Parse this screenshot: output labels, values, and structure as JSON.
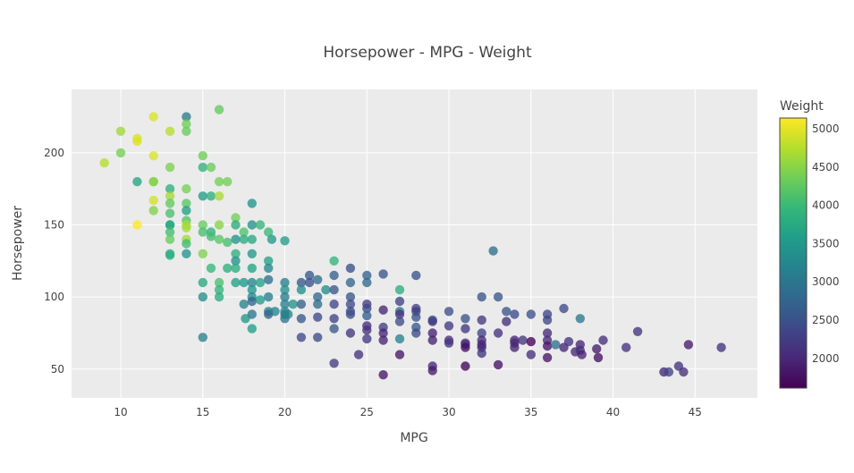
{
  "chart_data": {
    "type": "scatter",
    "title": "Horsepower - MPG - Weight",
    "xlabel": "MPG",
    "ylabel": "Horsepower",
    "xlim": [
      7,
      48.8
    ],
    "ylim": [
      30,
      244
    ],
    "x_ticks": [
      10,
      15,
      20,
      25,
      30,
      35,
      40,
      45
    ],
    "y_ticks": [
      50,
      100,
      150,
      200
    ],
    "grid": true,
    "colorbar": {
      "title": "Weight",
      "range": [
        1613,
        5140
      ],
      "ticks": [
        2000,
        2500,
        3000,
        3500,
        4000,
        4500,
        5000
      ],
      "colorscale": "Viridis"
    },
    "points": [
      [
        9,
        193,
        4732
      ],
      [
        10,
        215,
        4615
      ],
      [
        10,
        200,
        4376
      ],
      [
        11,
        210,
        4955
      ],
      [
        11,
        208,
        4952
      ],
      [
        11,
        180,
        3664
      ],
      [
        11,
        150,
        5140
      ],
      [
        12,
        225,
        4951
      ],
      [
        12,
        198,
        4952
      ],
      [
        12,
        180,
        4499
      ],
      [
        12,
        180,
        4464
      ],
      [
        12,
        167,
        4906
      ],
      [
        12,
        160,
        4462
      ],
      [
        13,
        215,
        4746
      ],
      [
        13,
        190,
        4422
      ],
      [
        13,
        175,
        3821
      ],
      [
        13,
        170,
        4654
      ],
      [
        13,
        165,
        4274
      ],
      [
        13,
        158,
        4100
      ],
      [
        13,
        150,
        3940
      ],
      [
        13,
        150,
        3700
      ],
      [
        13,
        145,
        4055
      ],
      [
        13,
        140,
        4294
      ],
      [
        13,
        130,
        3870
      ],
      [
        13,
        129,
        3821
      ],
      [
        14,
        225,
        3086
      ],
      [
        14,
        220,
        4354
      ],
      [
        14,
        215,
        4312
      ],
      [
        14,
        175,
        4385
      ],
      [
        14,
        165,
        4209
      ],
      [
        14,
        160,
        3609
      ],
      [
        14,
        153,
        4154
      ],
      [
        14,
        150,
        4699
      ],
      [
        14,
        148,
        4657
      ],
      [
        14,
        140,
        4638
      ],
      [
        14,
        137,
        4042
      ],
      [
        14,
        130,
        3420
      ],
      [
        15,
        198,
        4341
      ],
      [
        15,
        190,
        3850
      ],
      [
        15,
        170,
        3563
      ],
      [
        15,
        150,
        4300
      ],
      [
        15,
        145,
        4082
      ],
      [
        15,
        130,
        4440
      ],
      [
        15,
        110,
        3730
      ],
      [
        15,
        100,
        3329
      ],
      [
        15,
        72,
        3158
      ],
      [
        15.5,
        190,
        4325
      ],
      [
        15.5,
        170,
        3840
      ],
      [
        15.5,
        145,
        3892
      ],
      [
        15.5,
        142,
        4054
      ],
      [
        15.5,
        120,
        3962
      ],
      [
        16,
        230,
        4278
      ],
      [
        16,
        180,
        4380
      ],
      [
        16,
        170,
        4668
      ],
      [
        16,
        150,
        4498
      ],
      [
        16,
        140,
        4220
      ],
      [
        16,
        110,
        4100
      ],
      [
        16,
        105,
        3897
      ],
      [
        16,
        100,
        3781
      ],
      [
        16.5,
        180,
        4380
      ],
      [
        16.5,
        138,
        4080
      ],
      [
        16.5,
        120,
        3820
      ],
      [
        17,
        155,
        4360
      ],
      [
        17,
        150,
        3755
      ],
      [
        17,
        140,
        3449
      ],
      [
        17,
        130,
        3840
      ],
      [
        17,
        125,
        3410
      ],
      [
        17,
        110,
        3600
      ],
      [
        17,
        120,
        3800
      ],
      [
        17.5,
        145,
        4140
      ],
      [
        17.5,
        140,
        3785
      ],
      [
        17.5,
        110,
        3520
      ],
      [
        17.5,
        95,
        3193
      ],
      [
        17.6,
        85,
        3465
      ],
      [
        18,
        165,
        3445
      ],
      [
        18,
        150,
        3436
      ],
      [
        18,
        140,
        3735
      ],
      [
        18,
        130,
        3504
      ],
      [
        18,
        120,
        3660
      ],
      [
        18,
        110,
        3250
      ],
      [
        18,
        105,
        3459
      ],
      [
        18,
        100,
        3288
      ],
      [
        18,
        97,
        2774
      ],
      [
        18,
        88,
        3021
      ],
      [
        18,
        78,
        3574
      ],
      [
        18.5,
        150,
        3940
      ],
      [
        18.5,
        110,
        3645
      ],
      [
        18.5,
        98,
        3525
      ],
      [
        19,
        145,
        3988
      ],
      [
        19,
        125,
        3630
      ],
      [
        19,
        120,
        3270
      ],
      [
        19,
        112,
        2900
      ],
      [
        19,
        100,
        3102
      ],
      [
        19,
        90,
        3211
      ],
      [
        19,
        88,
        2722
      ],
      [
        19.2,
        140,
        3535
      ],
      [
        19.4,
        90,
        3210
      ],
      [
        20,
        139,
        3570
      ],
      [
        20,
        110,
        3102
      ],
      [
        20,
        105,
        3365
      ],
      [
        20,
        100,
        3085
      ],
      [
        20,
        95,
        3155
      ],
      [
        20,
        90,
        3265
      ],
      [
        20,
        88,
        3060
      ],
      [
        20,
        85,
        2965
      ],
      [
        20.2,
        88,
        3205
      ],
      [
        20.5,
        95,
        3425
      ],
      [
        21,
        110,
        2587
      ],
      [
        21,
        105,
        3360
      ],
      [
        21,
        95,
        2702
      ],
      [
        21,
        85,
        2587
      ],
      [
        21,
        72,
        2401
      ],
      [
        21.5,
        115,
        2600
      ],
      [
        21.5,
        110,
        2515
      ],
      [
        22,
        112,
        2835
      ],
      [
        22,
        100,
        2789
      ],
      [
        22,
        95,
        2833
      ],
      [
        22,
        86,
        2395
      ],
      [
        22,
        72,
        2408
      ],
      [
        22.5,
        105,
        3353
      ],
      [
        23,
        125,
        3900
      ],
      [
        23,
        115,
        2694
      ],
      [
        23,
        105,
        2575
      ],
      [
        23,
        95,
        2372
      ],
      [
        23,
        85,
        2310
      ],
      [
        23,
        78,
        2592
      ],
      [
        23,
        54,
        2254
      ],
      [
        24,
        120,
        2489
      ],
      [
        24,
        110,
        2757
      ],
      [
        24,
        100,
        2575
      ],
      [
        24,
        95,
        2430
      ],
      [
        24,
        90,
        2430
      ],
      [
        24,
        88,
        2480
      ],
      [
        24,
        75,
        2158
      ],
      [
        24.5,
        60,
        2164
      ],
      [
        25,
        115,
        2700
      ],
      [
        25,
        110,
        2800
      ],
      [
        25,
        95,
        2228
      ],
      [
        25,
        92,
        2400
      ],
      [
        25,
        87,
        2672
      ],
      [
        25,
        80,
        2046
      ],
      [
        25,
        77,
        2125
      ],
      [
        25,
        71,
        2220
      ],
      [
        26,
        116,
        2540
      ],
      [
        26,
        91,
        1970
      ],
      [
        26,
        79,
        2265
      ],
      [
        26,
        75,
        1995
      ],
      [
        26,
        70,
        1955
      ],
      [
        26,
        46,
        1835
      ],
      [
        27,
        105,
        3800
      ],
      [
        27,
        97,
        2310
      ],
      [
        27,
        90,
        2950
      ],
      [
        27,
        88,
        2130
      ],
      [
        27,
        83,
        2415
      ],
      [
        27,
        71,
        3190
      ],
      [
        27,
        60,
        1834
      ],
      [
        28,
        115,
        2525
      ],
      [
        28,
        92,
        2288
      ],
      [
        28,
        90,
        2265
      ],
      [
        28,
        86,
        2525
      ],
      [
        28,
        79,
        2625
      ],
      [
        28,
        75,
        2430
      ],
      [
        29,
        84,
        2525
      ],
      [
        29,
        83,
        2200
      ],
      [
        29,
        75,
        1937
      ],
      [
        29,
        70,
        1937
      ],
      [
        29,
        52,
        2005
      ],
      [
        29,
        49,
        1867
      ],
      [
        30,
        90,
        2500
      ],
      [
        30,
        80,
        2200
      ],
      [
        30,
        70,
        2074
      ],
      [
        30,
        68,
        2155
      ],
      [
        31,
        85,
        2525
      ],
      [
        31,
        78,
        2150
      ],
      [
        31,
        68,
        2045
      ],
      [
        31,
        67,
        2130
      ],
      [
        31,
        65,
        1773
      ],
      [
        31,
        52,
        1649
      ],
      [
        32,
        100,
        2560
      ],
      [
        32,
        84,
        2225
      ],
      [
        32,
        75,
        2350
      ],
      [
        32,
        70,
        2070
      ],
      [
        32,
        65,
        2045
      ],
      [
        32,
        67,
        1965
      ],
      [
        32,
        61,
        2145
      ],
      [
        32.7,
        132,
        2910
      ],
      [
        33,
        100,
        2575
      ],
      [
        33,
        75,
        2125
      ],
      [
        33,
        53,
        1795
      ],
      [
        33.5,
        90,
        2556
      ],
      [
        33.5,
        83,
        2075
      ],
      [
        34,
        88,
        2395
      ],
      [
        34,
        70,
        1965
      ],
      [
        34,
        68,
        2045
      ],
      [
        34,
        65,
        1975
      ],
      [
        34.5,
        70,
        2150
      ],
      [
        35,
        88,
        2500
      ],
      [
        35,
        69,
        1613
      ],
      [
        35,
        60,
        2065
      ],
      [
        36,
        88,
        2370
      ],
      [
        36,
        84,
        2370
      ],
      [
        36,
        75,
        2050
      ],
      [
        36,
        70,
        2020
      ],
      [
        36,
        66,
        1800
      ],
      [
        36,
        58,
        1825
      ],
      [
        36.5,
        67,
        2900
      ],
      [
        37,
        92,
        2434
      ],
      [
        37,
        65,
        1975
      ],
      [
        37.3,
        69,
        2130
      ],
      [
        37.7,
        62,
        2050
      ],
      [
        38,
        85,
        3015
      ],
      [
        38,
        67,
        1965
      ],
      [
        38,
        63,
        2125
      ],
      [
        38.1,
        60,
        1968
      ],
      [
        39,
        64,
        1875
      ],
      [
        39.1,
        58,
        1755
      ],
      [
        39.4,
        70,
        2070
      ],
      [
        40.8,
        65,
        2110
      ],
      [
        41.5,
        76,
        2144
      ],
      [
        43.1,
        48,
        1985
      ],
      [
        43.4,
        48,
        2335
      ],
      [
        44,
        52,
        2130
      ],
      [
        44.3,
        48,
        2085
      ],
      [
        44.6,
        67,
        1850
      ],
      [
        46.6,
        65,
        2110
      ]
    ]
  }
}
